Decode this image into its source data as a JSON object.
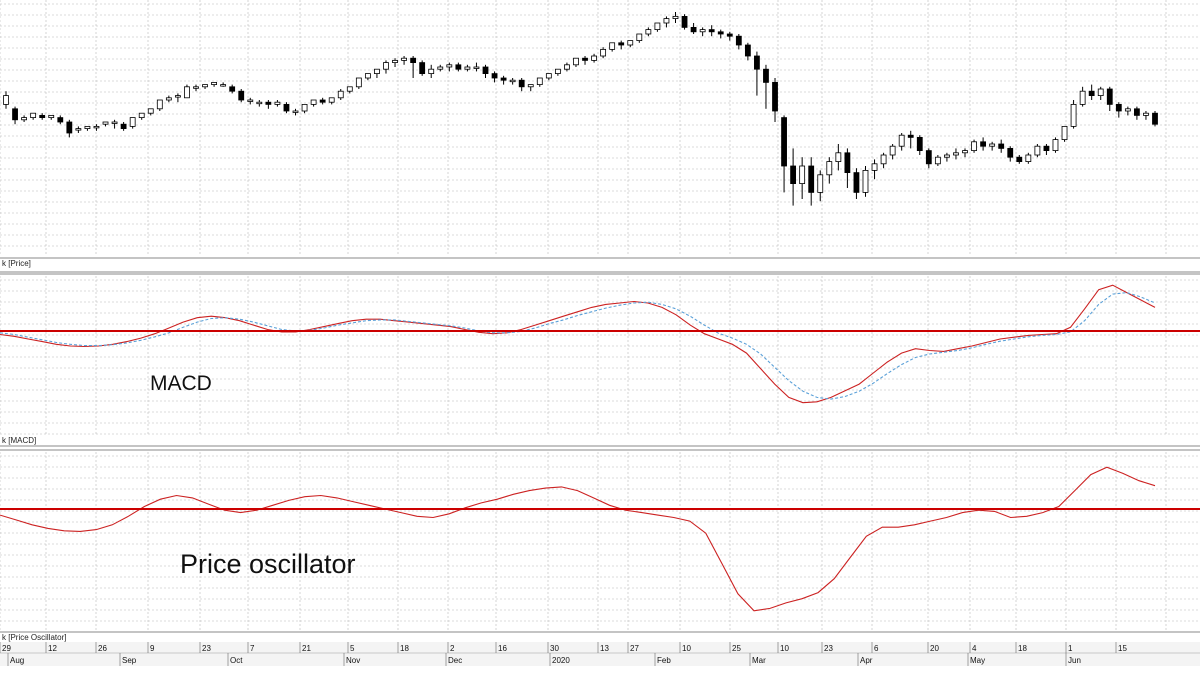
{
  "chart_data": [
    {
      "type": "candlestick",
      "panel_label": "k [Price]",
      "note": "approximate daily OHLC read visually; no y tick labels printed",
      "ohlc": [
        [
          0.58,
          0.64,
          0.62,
          0.56
        ],
        [
          0.56,
          0.57,
          0.51,
          0.49
        ],
        [
          0.51,
          0.53,
          0.52,
          0.5
        ],
        [
          0.52,
          0.53,
          0.54,
          0.51
        ],
        [
          0.53,
          0.54,
          0.52,
          0.51
        ],
        [
          0.52,
          0.53,
          0.53,
          0.51
        ],
        [
          0.52,
          0.53,
          0.5,
          0.49
        ],
        [
          0.5,
          0.51,
          0.45,
          0.43
        ],
        [
          0.47,
          0.48,
          0.47,
          0.45
        ],
        [
          0.47,
          0.48,
          0.48,
          0.46
        ],
        [
          0.48,
          0.49,
          0.48,
          0.46
        ],
        [
          0.49,
          0.5,
          0.5,
          0.48
        ],
        [
          0.5,
          0.51,
          0.5,
          0.47
        ],
        [
          0.49,
          0.5,
          0.47,
          0.46
        ],
        [
          0.48,
          0.5,
          0.52,
          0.47
        ],
        [
          0.52,
          0.53,
          0.54,
          0.51
        ],
        [
          0.54,
          0.56,
          0.56,
          0.53
        ],
        [
          0.56,
          0.6,
          0.6,
          0.55
        ],
        [
          0.6,
          0.62,
          0.61,
          0.59
        ],
        [
          0.62,
          0.63,
          0.62,
          0.59
        ],
        [
          0.61,
          0.67,
          0.66,
          0.61
        ],
        [
          0.66,
          0.67,
          0.66,
          0.64
        ],
        [
          0.66,
          0.67,
          0.67,
          0.65
        ],
        [
          0.67,
          0.68,
          0.68,
          0.66
        ],
        [
          0.67,
          0.68,
          0.67,
          0.66
        ],
        [
          0.66,
          0.67,
          0.64,
          0.63
        ],
        [
          0.64,
          0.65,
          0.6,
          0.59
        ],
        [
          0.6,
          0.61,
          0.6,
          0.58
        ],
        [
          0.59,
          0.6,
          0.59,
          0.57
        ],
        [
          0.59,
          0.6,
          0.58,
          0.56
        ],
        [
          0.58,
          0.6,
          0.59,
          0.57
        ],
        [
          0.58,
          0.59,
          0.55,
          0.54
        ],
        [
          0.55,
          0.56,
          0.55,
          0.53
        ],
        [
          0.55,
          0.57,
          0.58,
          0.54
        ],
        [
          0.58,
          0.6,
          0.6,
          0.57
        ],
        [
          0.6,
          0.61,
          0.59,
          0.58
        ],
        [
          0.59,
          0.61,
          0.61,
          0.58
        ],
        [
          0.61,
          0.65,
          0.64,
          0.6
        ],
        [
          0.64,
          0.66,
          0.66,
          0.63
        ],
        [
          0.66,
          0.7,
          0.7,
          0.65
        ],
        [
          0.7,
          0.72,
          0.72,
          0.69
        ],
        [
          0.72,
          0.74,
          0.74,
          0.7
        ],
        [
          0.74,
          0.78,
          0.77,
          0.72
        ],
        [
          0.77,
          0.79,
          0.78,
          0.75
        ],
        [
          0.78,
          0.8,
          0.79,
          0.76
        ],
        [
          0.79,
          0.8,
          0.77,
          0.7
        ],
        [
          0.77,
          0.78,
          0.72,
          0.71
        ],
        [
          0.72,
          0.76,
          0.74,
          0.7
        ],
        [
          0.74,
          0.76,
          0.75,
          0.73
        ],
        [
          0.75,
          0.77,
          0.76,
          0.73
        ],
        [
          0.76,
          0.77,
          0.74,
          0.73
        ],
        [
          0.74,
          0.76,
          0.75,
          0.73
        ],
        [
          0.75,
          0.77,
          0.75,
          0.73
        ],
        [
          0.75,
          0.76,
          0.72,
          0.7
        ],
        [
          0.72,
          0.73,
          0.7,
          0.68
        ],
        [
          0.7,
          0.71,
          0.69,
          0.67
        ],
        [
          0.69,
          0.7,
          0.69,
          0.67
        ],
        [
          0.69,
          0.7,
          0.66,
          0.64
        ],
        [
          0.66,
          0.67,
          0.67,
          0.64
        ],
        [
          0.67,
          0.7,
          0.7,
          0.66
        ],
        [
          0.7,
          0.72,
          0.72,
          0.69
        ],
        [
          0.72,
          0.74,
          0.74,
          0.71
        ],
        [
          0.74,
          0.77,
          0.76,
          0.73
        ],
        [
          0.76,
          0.79,
          0.79,
          0.75
        ],
        [
          0.79,
          0.8,
          0.78,
          0.76
        ],
        [
          0.78,
          0.81,
          0.8,
          0.77
        ],
        [
          0.8,
          0.84,
          0.83,
          0.79
        ],
        [
          0.83,
          0.86,
          0.86,
          0.82
        ],
        [
          0.86,
          0.87,
          0.85,
          0.83
        ],
        [
          0.85,
          0.87,
          0.87,
          0.84
        ],
        [
          0.87,
          0.9,
          0.9,
          0.86
        ],
        [
          0.9,
          0.93,
          0.92,
          0.89
        ],
        [
          0.92,
          0.95,
          0.95,
          0.91
        ],
        [
          0.95,
          0.98,
          0.97,
          0.93
        ],
        [
          0.97,
          1.0,
          0.98,
          0.95
        ],
        [
          0.98,
          0.99,
          0.93,
          0.92
        ],
        [
          0.93,
          0.95,
          0.91,
          0.9
        ],
        [
          0.91,
          0.93,
          0.92,
          0.89
        ],
        [
          0.92,
          0.94,
          0.91,
          0.89
        ],
        [
          0.91,
          0.92,
          0.9,
          0.88
        ],
        [
          0.9,
          0.91,
          0.89,
          0.87
        ],
        [
          0.89,
          0.9,
          0.85,
          0.83
        ],
        [
          0.85,
          0.86,
          0.8,
          0.78
        ],
        [
          0.8,
          0.82,
          0.74,
          0.62
        ],
        [
          0.74,
          0.76,
          0.68,
          0.56
        ],
        [
          0.68,
          0.7,
          0.55,
          0.5
        ],
        [
          0.52,
          0.53,
          0.3,
          0.18
        ],
        [
          0.3,
          0.38,
          0.22,
          0.12
        ],
        [
          0.22,
          0.34,
          0.3,
          0.15
        ],
        [
          0.3,
          0.34,
          0.18,
          0.12
        ],
        [
          0.18,
          0.28,
          0.26,
          0.14
        ],
        [
          0.26,
          0.34,
          0.32,
          0.22
        ],
        [
          0.32,
          0.4,
          0.36,
          0.28
        ],
        [
          0.36,
          0.38,
          0.27,
          0.2
        ],
        [
          0.27,
          0.29,
          0.18,
          0.15
        ],
        [
          0.18,
          0.3,
          0.28,
          0.16
        ],
        [
          0.28,
          0.33,
          0.31,
          0.24
        ],
        [
          0.31,
          0.36,
          0.35,
          0.29
        ],
        [
          0.35,
          0.4,
          0.39,
          0.33
        ],
        [
          0.39,
          0.45,
          0.44,
          0.37
        ],
        [
          0.44,
          0.46,
          0.43,
          0.38
        ],
        [
          0.43,
          0.44,
          0.37,
          0.35
        ],
        [
          0.37,
          0.38,
          0.31,
          0.29
        ],
        [
          0.31,
          0.35,
          0.34,
          0.3
        ],
        [
          0.34,
          0.36,
          0.35,
          0.32
        ],
        [
          0.35,
          0.38,
          0.36,
          0.33
        ],
        [
          0.36,
          0.38,
          0.37,
          0.34
        ],
        [
          0.37,
          0.42,
          0.41,
          0.36
        ],
        [
          0.41,
          0.43,
          0.39,
          0.37
        ],
        [
          0.39,
          0.41,
          0.4,
          0.37
        ],
        [
          0.4,
          0.42,
          0.38,
          0.36
        ],
        [
          0.38,
          0.39,
          0.34,
          0.32
        ],
        [
          0.34,
          0.35,
          0.32,
          0.31
        ],
        [
          0.32,
          0.36,
          0.35,
          0.31
        ],
        [
          0.35,
          0.4,
          0.39,
          0.34
        ],
        [
          0.39,
          0.4,
          0.37,
          0.35
        ],
        [
          0.37,
          0.43,
          0.42,
          0.36
        ],
        [
          0.42,
          0.48,
          0.48,
          0.41
        ],
        [
          0.48,
          0.6,
          0.58,
          0.47
        ],
        [
          0.58,
          0.66,
          0.64,
          0.57
        ],
        [
          0.64,
          0.67,
          0.62,
          0.6
        ],
        [
          0.62,
          0.66,
          0.65,
          0.6
        ],
        [
          0.65,
          0.66,
          0.58,
          0.55
        ],
        [
          0.58,
          0.59,
          0.55,
          0.52
        ],
        [
          0.55,
          0.57,
          0.56,
          0.53
        ],
        [
          0.56,
          0.57,
          0.53,
          0.51
        ],
        [
          0.53,
          0.55,
          0.54,
          0.51
        ],
        [
          0.54,
          0.55,
          0.49,
          0.48
        ]
      ]
    },
    {
      "type": "line",
      "panel_label": "k [MACD]",
      "annotation": "MACD",
      "series": [
        {
          "color": "#cc2222",
          "values": [
            -0.08,
            -0.12,
            -0.18,
            -0.24,
            -0.3,
            -0.34,
            -0.35,
            -0.34,
            -0.3,
            -0.24,
            -0.16,
            -0.06,
            0.04,
            0.12,
            0.18,
            0.2,
            0.18,
            0.14,
            0.08,
            0.02,
            -0.02,
            -0.02,
            0.02,
            0.06,
            0.1,
            0.14,
            0.16,
            0.16,
            0.14,
            0.12,
            0.1,
            0.08,
            0.06,
            0.02,
            -0.03,
            -0.06,
            -0.04,
            0.02,
            0.08,
            0.14,
            0.2,
            0.26,
            0.32,
            0.36,
            0.38,
            0.4,
            0.38,
            0.32,
            0.22,
            0.08,
            -0.06,
            -0.18,
            -0.3,
            -0.5,
            -0.85,
            -1.2,
            -1.5,
            -1.62,
            -1.6,
            -1.5,
            -1.35,
            -1.2,
            -0.95,
            -0.7,
            -0.5,
            -0.4,
            -0.44,
            -0.46,
            -0.4,
            -0.34,
            -0.26,
            -0.18,
            -0.14,
            -0.1,
            -0.08,
            -0.06,
            0.05,
            0.3,
            0.56,
            0.62,
            0.52,
            0.42,
            0.32
          ]
        },
        {
          "color": "#5aa0d8",
          "dashed": true,
          "values": [
            -0.04,
            -0.08,
            -0.14,
            -0.2,
            -0.26,
            -0.3,
            -0.33,
            -0.33,
            -0.31,
            -0.27,
            -0.21,
            -0.13,
            -0.04,
            0.05,
            0.12,
            0.17,
            0.18,
            0.16,
            0.12,
            0.07,
            0.02,
            0.0,
            0.01,
            0.04,
            0.08,
            0.11,
            0.14,
            0.15,
            0.15,
            0.13,
            0.11,
            0.09,
            0.07,
            0.04,
            0.0,
            -0.04,
            -0.04,
            -0.01,
            0.04,
            0.1,
            0.15,
            0.21,
            0.26,
            0.31,
            0.35,
            0.38,
            0.39,
            0.36,
            0.3,
            0.2,
            0.08,
            -0.05,
            -0.16,
            -0.3,
            -0.52,
            -0.82,
            -1.12,
            -1.36,
            -1.5,
            -1.54,
            -1.48,
            -1.36,
            -1.18,
            -0.96,
            -0.76,
            -0.6,
            -0.52,
            -0.48,
            -0.44,
            -0.38,
            -0.3,
            -0.23,
            -0.18,
            -0.13,
            -0.1,
            -0.08,
            -0.02,
            0.14,
            0.36,
            0.5,
            0.52,
            0.46,
            0.38
          ]
        }
      ]
    },
    {
      "type": "line",
      "panel_label": "k [Price Oscillator]",
      "annotation": "Price oscillator",
      "series": [
        {
          "color": "#cc2222",
          "values": [
            -0.1,
            -0.18,
            -0.26,
            -0.32,
            -0.36,
            -0.37,
            -0.34,
            -0.26,
            -0.12,
            0.04,
            0.16,
            0.22,
            0.18,
            0.08,
            -0.02,
            -0.06,
            -0.02,
            0.06,
            0.14,
            0.2,
            0.22,
            0.18,
            0.12,
            0.06,
            0.0,
            -0.06,
            -0.12,
            -0.14,
            -0.08,
            0.02,
            0.1,
            0.16,
            0.24,
            0.3,
            0.34,
            0.36,
            0.3,
            0.18,
            0.06,
            -0.02,
            -0.06,
            -0.1,
            -0.14,
            -0.2,
            -0.4,
            -0.9,
            -1.4,
            -1.68,
            -1.64,
            -1.55,
            -1.48,
            -1.38,
            -1.15,
            -0.8,
            -0.45,
            -0.3,
            -0.3,
            -0.26,
            -0.2,
            -0.14,
            -0.06,
            -0.02,
            -0.04,
            -0.14,
            -0.12,
            -0.06,
            0.04,
            0.3,
            0.56,
            0.68,
            0.58,
            0.46,
            0.38
          ]
        }
      ]
    }
  ],
  "panels": {
    "price": {
      "label": "k [Price]"
    },
    "macd": {
      "label": "k [MACD]",
      "annotation": "MACD"
    },
    "oscillator": {
      "label": "k [Price Oscillator]",
      "annotation": "Price oscillator"
    }
  },
  "x_axis": {
    "day_ticks": [
      "29",
      "12",
      "26",
      "9",
      "23",
      "7",
      "21",
      "5",
      "18",
      "2",
      "16",
      "30",
      "13",
      "27",
      "10",
      "25",
      "10",
      "23",
      "6",
      "20",
      "4",
      "18",
      "1",
      "15"
    ],
    "month_ticks": [
      "Aug",
      "Sep",
      "Oct",
      "Nov",
      "Dec",
      "2020",
      "Feb",
      "Mar",
      "Apr",
      "May",
      "Jun"
    ]
  }
}
